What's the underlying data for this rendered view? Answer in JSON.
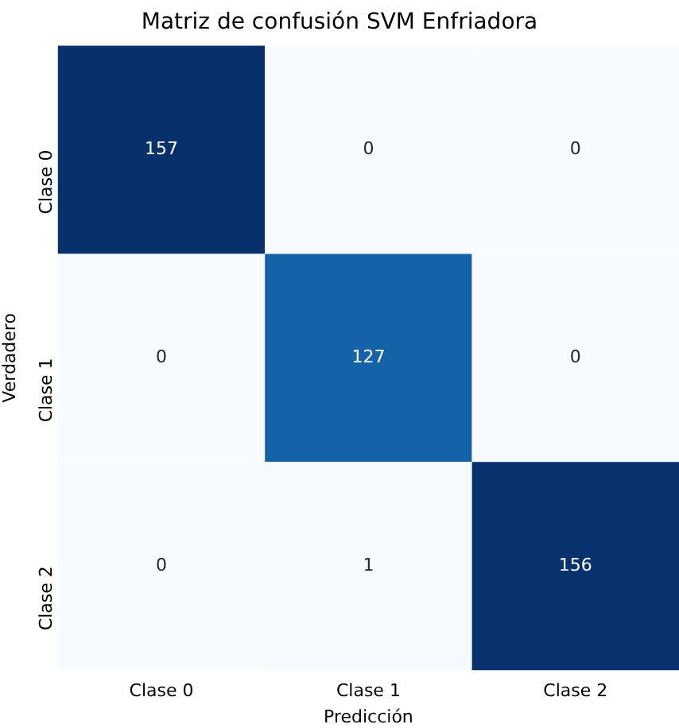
{
  "chart_data": {
    "type": "heatmap",
    "title": "Matriz de confusión SVM Enfriadora",
    "xlabel": "Predicción",
    "ylabel": "Verdadero",
    "categories": [
      "Clase 0",
      "Clase 1",
      "Clase 2"
    ],
    "y_categories": [
      "Clase 0",
      "Clase 1",
      "Clase 2"
    ],
    "cells": [
      [
        157,
        0,
        0
      ],
      [
        0,
        127,
        0
      ],
      [
        0,
        1,
        156
      ]
    ],
    "data_labels": true
  }
}
